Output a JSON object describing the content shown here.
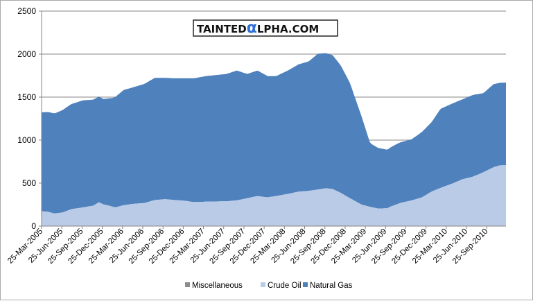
{
  "chart_data": {
    "type": "area",
    "stacked": true,
    "watermark": {
      "pre": "TAINTED",
      "alpha": "α",
      "post": "LPHA.COM"
    },
    "ylim": [
      0,
      2500
    ],
    "yticks": [
      0,
      500,
      1000,
      1500,
      2000,
      2500
    ],
    "grid": true,
    "legend_position": "bottom",
    "xtick_labels": [
      "25-Mar-2005",
      "25-Jun-2005",
      "25-Sep-2005",
      "25-Dec-2005",
      "25-Mar-2006",
      "25-Jun-2006",
      "25-Sep-2006",
      "25-Dec-2006",
      "25-Mar-2007",
      "25-Jun-2007",
      "25-Sep-2007",
      "25-Dec-2007",
      "25-Mar-2008",
      "25-Jun-2008",
      "25-Sep-2008",
      "25-Dec-2008",
      "25-Mar-2009",
      "25-Jun-2009",
      "25-Sep-2009",
      "25-Dec-2009",
      "25-Mar-2010",
      "25-Jun-2010",
      "25-Sep-2010"
    ],
    "x_start": "2005-03-25",
    "x_end": "2010-11-19",
    "series": [
      {
        "name": "Miscellaneous",
        "color": "#8c8c8c",
        "points": [
          [
            "2005-03-25",
            2
          ],
          [
            "2006-06-25",
            3
          ],
          [
            "2007-06-25",
            4
          ],
          [
            "2008-06-25",
            5
          ],
          [
            "2008-10-15",
            6
          ],
          [
            "2009-06-25",
            3
          ],
          [
            "2010-06-25",
            5
          ],
          [
            "2010-11-19",
            5
          ]
        ]
      },
      {
        "name": "Crude Oil",
        "color": "#b9cbe6",
        "points": [
          [
            "2005-03-25",
            170
          ],
          [
            "2005-04-22",
            165
          ],
          [
            "2005-05-20",
            145
          ],
          [
            "2005-06-25",
            155
          ],
          [
            "2005-08-05",
            195
          ],
          [
            "2005-09-25",
            215
          ],
          [
            "2005-11-10",
            235
          ],
          [
            "2005-12-05",
            275
          ],
          [
            "2005-12-25",
            250
          ],
          [
            "2006-01-20",
            235
          ],
          [
            "2006-02-15",
            215
          ],
          [
            "2006-03-25",
            240
          ],
          [
            "2006-05-05",
            255
          ],
          [
            "2006-06-25",
            265
          ],
          [
            "2006-08-10",
            300
          ],
          [
            "2006-09-25",
            310
          ],
          [
            "2006-11-05",
            300
          ],
          [
            "2006-12-25",
            290
          ],
          [
            "2007-02-01",
            275
          ],
          [
            "2007-03-25",
            280
          ],
          [
            "2007-06-25",
            285
          ],
          [
            "2007-08-10",
            295
          ],
          [
            "2007-09-25",
            320
          ],
          [
            "2007-11-10",
            345
          ],
          [
            "2007-12-25",
            330
          ],
          [
            "2008-02-01",
            345
          ],
          [
            "2008-03-25",
            370
          ],
          [
            "2008-05-10",
            395
          ],
          [
            "2008-06-25",
            405
          ],
          [
            "2008-08-05",
            420
          ],
          [
            "2008-09-10",
            435
          ],
          [
            "2008-10-10",
            425
          ],
          [
            "2008-11-15",
            380
          ],
          [
            "2008-12-25",
            320
          ],
          [
            "2009-02-15",
            245
          ],
          [
            "2009-03-25",
            220
          ],
          [
            "2009-04-30",
            200
          ],
          [
            "2009-06-10",
            205
          ],
          [
            "2009-06-25",
            225
          ],
          [
            "2009-08-05",
            265
          ],
          [
            "2009-09-25",
            295
          ],
          [
            "2009-11-10",
            330
          ],
          [
            "2009-12-25",
            400
          ],
          [
            "2010-02-01",
            440
          ],
          [
            "2010-03-25",
            490
          ],
          [
            "2010-05-10",
            540
          ],
          [
            "2010-06-25",
            570
          ],
          [
            "2010-08-10",
            620
          ],
          [
            "2010-09-25",
            680
          ],
          [
            "2010-10-20",
            700
          ],
          [
            "2010-11-19",
            705
          ]
        ]
      },
      {
        "name": "Natural Gas",
        "color": "#4f81bd",
        "points": [
          [
            "2005-03-25",
            1150
          ],
          [
            "2005-04-25",
            1160
          ],
          [
            "2005-05-25",
            1165
          ],
          [
            "2005-06-25",
            1190
          ],
          [
            "2005-08-01",
            1220
          ],
          [
            "2005-09-25",
            1245
          ],
          [
            "2005-11-01",
            1235
          ],
          [
            "2005-12-25",
            1225
          ],
          [
            "2006-02-01",
            1260
          ],
          [
            "2006-03-25",
            1340
          ],
          [
            "2006-05-05",
            1355
          ],
          [
            "2006-06-25",
            1385
          ],
          [
            "2006-08-10",
            1420
          ],
          [
            "2006-09-25",
            1410
          ],
          [
            "2006-11-05",
            1415
          ],
          [
            "2006-12-25",
            1425
          ],
          [
            "2007-02-01",
            1440
          ],
          [
            "2007-03-25",
            1460
          ],
          [
            "2007-06-25",
            1480
          ],
          [
            "2007-08-10",
            1510
          ],
          [
            "2007-09-25",
            1445
          ],
          [
            "2007-11-10",
            1460
          ],
          [
            "2007-12-25",
            1410
          ],
          [
            "2008-02-01",
            1395
          ],
          [
            "2008-03-25",
            1435
          ],
          [
            "2008-05-10",
            1480
          ],
          [
            "2008-06-25",
            1505
          ],
          [
            "2008-08-05",
            1580
          ],
          [
            "2008-09-10",
            1570
          ],
          [
            "2008-10-10",
            1555
          ],
          [
            "2008-11-15",
            1480
          ],
          [
            "2008-12-25",
            1340
          ],
          [
            "2009-02-15",
            1025
          ],
          [
            "2009-03-25",
            740
          ],
          [
            "2009-04-30",
            705
          ],
          [
            "2009-06-10",
            680
          ],
          [
            "2009-06-25",
            690
          ],
          [
            "2009-08-05",
            705
          ],
          [
            "2009-09-25",
            710
          ],
          [
            "2009-11-10",
            760
          ],
          [
            "2009-12-25",
            810
          ],
          [
            "2010-02-01",
            920
          ],
          [
            "2010-03-25",
            930
          ],
          [
            "2010-05-10",
            930
          ],
          [
            "2010-06-25",
            950
          ],
          [
            "2010-08-10",
            920
          ],
          [
            "2010-09-25",
            965
          ],
          [
            "2010-10-20",
            960
          ],
          [
            "2010-11-19",
            960
          ]
        ]
      }
    ]
  }
}
